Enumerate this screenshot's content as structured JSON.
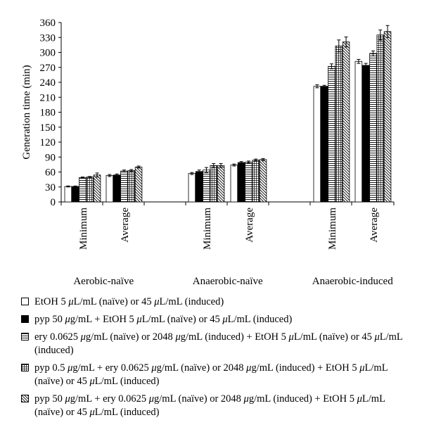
{
  "chart_data": {
    "type": "bar",
    "ylabel": "Generation time (min)",
    "ylim": [
      0,
      360
    ],
    "yticks": [
      0,
      30,
      60,
      90,
      120,
      150,
      180,
      210,
      240,
      270,
      300,
      330,
      360
    ],
    "groups": [
      {
        "label": "Aerobic-naïve",
        "categories": [
          "Minimum",
          "Average"
        ]
      },
      {
        "label": "Anaerobic-naïve",
        "categories": [
          "Minimum",
          "Average"
        ]
      },
      {
        "label": "Anaerobic-induced",
        "categories": [
          "Minimum",
          "Average"
        ]
      }
    ],
    "categories": [
      "Aerobic-naïve Minimum",
      "Aerobic-naïve Average",
      "Anaerobic-naïve Minimum",
      "Anaerobic-naïve Average",
      "Anaerobic-induced Minimum",
      "Anaerobic-induced Average"
    ],
    "series": [
      {
        "name": "EtOH 5 μL/mL (naïve) or 45 μL/mL (induced)",
        "pattern": "white",
        "values": [
          31,
          53,
          57,
          74,
          232,
          282
        ],
        "errors": [
          1,
          2,
          2,
          2,
          3,
          4
        ]
      },
      {
        "name": "pyp 50 μg/mL + EtOH 5 μL/mL (naïve) or 45 μL/mL (induced)",
        "pattern": "black",
        "values": [
          31,
          54,
          61,
          79,
          232,
          274
        ],
        "errors": [
          1,
          2,
          3,
          2,
          2,
          4
        ]
      },
      {
        "name": "ery 0.0625 μg/mL (naïve) or 2048 μg/mL (induced) + EtOH 5 μL/mL (naïve) or 45 μL/mL (induced)",
        "pattern": "hlines",
        "values": [
          49,
          62,
          64,
          80,
          272,
          298
        ],
        "errors": [
          1,
          2,
          5,
          2,
          5,
          5
        ]
      },
      {
        "name": "pyp 0.5 μg/mL + ery 0.0625 μg/mL (naïve) or 2048 μg/mL (induced) + EtOH 5 μL/mL (naïve) or 45 μL/mL (induced)",
        "pattern": "grid",
        "values": [
          50,
          63,
          73,
          84,
          313,
          335
        ],
        "errors": [
          1,
          2,
          4,
          2,
          12,
          10
        ]
      },
      {
        "name": "pyp 50 μg/mL + ery 0.0625 μg/mL (naïve) or 2048 μg/mL (induced) + EtOH 5 μL/mL (naïve) or 45 μL/mL (induced)",
        "pattern": "diag",
        "values": [
          54,
          70,
          73,
          85,
          321,
          342
        ],
        "errors": [
          4,
          2,
          4,
          2,
          10,
          12
        ]
      }
    ],
    "legend": {
      "position": "bottom",
      "items": [
        {
          "parts": [
            "EtOH 5 ",
            "μ",
            "L/mL (naïve) or 45 ",
            "μ",
            "L/mL (induced)"
          ]
        },
        {
          "parts": [
            "pyp 50 ",
            "μ",
            "g/mL + EtOH 5 ",
            "μ",
            "L/mL (naïve) or 45 ",
            "μ",
            "L/mL (induced)"
          ]
        },
        {
          "parts": [
            "ery 0.0625 ",
            "μ",
            "g/mL (naïve) or 2048 ",
            "μ",
            "g/mL (induced) + EtOH 5 ",
            "μ",
            "L/mL (naïve) or 45 ",
            "μ",
            "L/mL (induced)"
          ]
        },
        {
          "parts": [
            "pyp 0.5 ",
            "μ",
            "g/mL + ery 0.0625 ",
            "μ",
            "g/mL (naïve) or 2048 ",
            "μ",
            "g/mL (induced) + EtOH 5 ",
            "μ",
            "L/mL (naïve) or 45 ",
            "μ",
            "L/mL (induced)"
          ]
        },
        {
          "parts": [
            "pyp 50 ",
            "μ",
            "g/mL + ery 0.0625 ",
            "μ",
            "g/mL (naïve) or 2048 ",
            "μ",
            "g/mL (induced) + EtOH 5 ",
            "μ",
            "L/mL (naïve) or 45 ",
            "μ",
            "L/mL (induced)"
          ]
        }
      ]
    },
    "grid": false
  }
}
